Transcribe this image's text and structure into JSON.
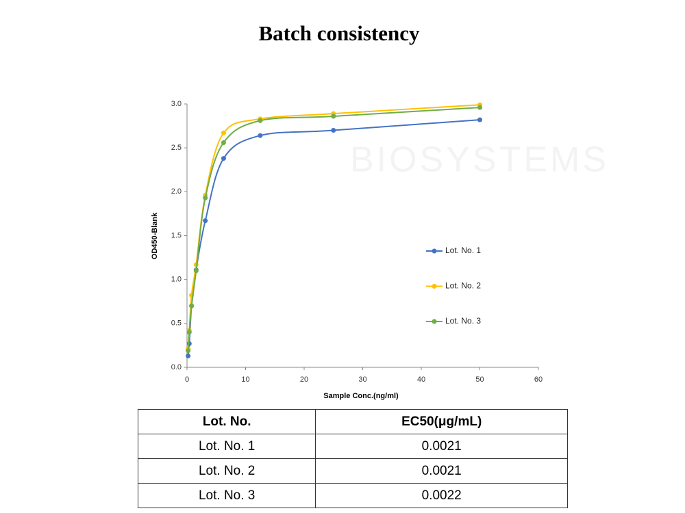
{
  "chart_data": {
    "type": "line",
    "title": "Batch consistency",
    "watermark": "BIOSYSTEMS",
    "x_label": "Sample Conc.(ng/ml)",
    "y_label": "OD450-Blank",
    "x": [
      0.195,
      0.39,
      0.78,
      1.56,
      3.125,
      6.25,
      12.5,
      25,
      50
    ],
    "series": [
      {
        "name": "Lot. No. 1",
        "color": "#4472c4",
        "values": [
          0.13,
          0.27,
          0.7,
          1.11,
          1.67,
          2.38,
          2.64,
          2.7,
          2.82
        ]
      },
      {
        "name": "Lot. No. 2",
        "color": "#ffc000",
        "values": [
          0.21,
          0.42,
          0.82,
          1.17,
          1.96,
          2.67,
          2.83,
          2.89,
          2.99
        ]
      },
      {
        "name": "Lot. No. 3",
        "color": "#70ad47",
        "values": [
          0.19,
          0.4,
          0.7,
          1.1,
          1.93,
          2.56,
          2.81,
          2.86,
          2.96
        ]
      }
    ],
    "xlim": [
      0,
      60
    ],
    "xticks": [
      0,
      10,
      20,
      30,
      40,
      50,
      60
    ],
    "ylim": [
      0,
      3
    ],
    "yticks": [
      {
        "value": 0,
        "label": "0.0"
      },
      0.5,
      {
        "value": 1,
        "label": "1.0"
      },
      1.5,
      {
        "value": 2,
        "label": "2.0"
      },
      2.5,
      {
        "value": 3,
        "label": "3.0"
      }
    ],
    "smooth": true,
    "legend": "right"
  },
  "table": {
    "header": [
      "Lot. No.",
      "EC50(μg/mL)"
    ],
    "rows": [
      [
        "Lot. No. 1",
        "0.0021"
      ],
      [
        "Lot. No. 2",
        "0.0021"
      ],
      [
        "Lot. No. 3",
        "0.0022"
      ]
    ]
  }
}
